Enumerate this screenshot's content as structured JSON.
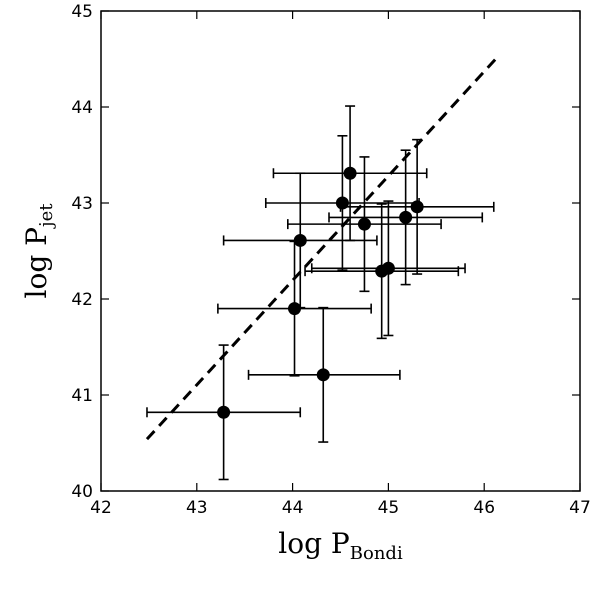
{
  "chart_data": {
    "type": "scatter",
    "title": "",
    "xlabel": "log P",
    "xlabel_sub": "Bondi",
    "ylabel": "log P",
    "ylabel_sub": "jet",
    "xlim": [
      42,
      47
    ],
    "ylim": [
      40,
      45
    ],
    "xticks": [
      42,
      43,
      44,
      45,
      46,
      47
    ],
    "yticks": [
      40,
      41,
      42,
      43,
      44,
      45
    ],
    "xtick_labels": [
      "42",
      "43",
      "44",
      "45",
      "46",
      "47"
    ],
    "ytick_labels": [
      "40",
      "41",
      "42",
      "43",
      "44",
      "45"
    ],
    "grid": false,
    "legend": "none",
    "colors": {
      "points": "#000000",
      "errorbars": "#000000",
      "fit_line": "#000000"
    },
    "points": [
      {
        "x": 43.28,
        "y": 40.82,
        "xerr": [
          0.8,
          0.8
        ],
        "yerr": [
          0.7,
          0.7
        ]
      },
      {
        "x": 44.32,
        "y": 41.21,
        "xerr": [
          0.78,
          0.8
        ],
        "yerr": [
          0.7,
          0.7
        ]
      },
      {
        "x": 44.02,
        "y": 41.9,
        "xerr": [
          0.8,
          0.8
        ],
        "yerr": [
          0.7,
          0.7
        ]
      },
      {
        "x": 44.08,
        "y": 42.61,
        "xerr": [
          0.8,
          0.8
        ],
        "yerr": [
          0.7,
          0.7
        ]
      },
      {
        "x": 44.52,
        "y": 43.0,
        "xerr": [
          0.8,
          0.8
        ],
        "yerr": [
          0.7,
          0.7
        ]
      },
      {
        "x": 44.6,
        "y": 43.31,
        "xerr": [
          0.8,
          0.8
        ],
        "yerr": [
          0.7,
          0.7
        ]
      },
      {
        "x": 44.75,
        "y": 42.78,
        "xerr": [
          0.8,
          0.8
        ],
        "yerr": [
          0.7,
          0.7
        ]
      },
      {
        "x": 44.93,
        "y": 42.29,
        "xerr": [
          0.8,
          0.8
        ],
        "yerr": [
          0.7,
          0.7
        ]
      },
      {
        "x": 45.0,
        "y": 42.32,
        "xerr": [
          0.8,
          0.8
        ],
        "yerr": [
          0.7,
          0.7
        ]
      },
      {
        "x": 45.18,
        "y": 42.85,
        "xerr": [
          0.8,
          0.8
        ],
        "yerr": [
          0.7,
          0.7
        ]
      },
      {
        "x": 45.3,
        "y": 42.96,
        "xerr": [
          0.8,
          0.8
        ],
        "yerr": [
          0.7,
          0.7
        ]
      }
    ],
    "fit_line": {
      "style": "dashed",
      "x": [
        42.48,
        46.12
      ],
      "y": [
        40.54,
        44.5
      ]
    }
  }
}
